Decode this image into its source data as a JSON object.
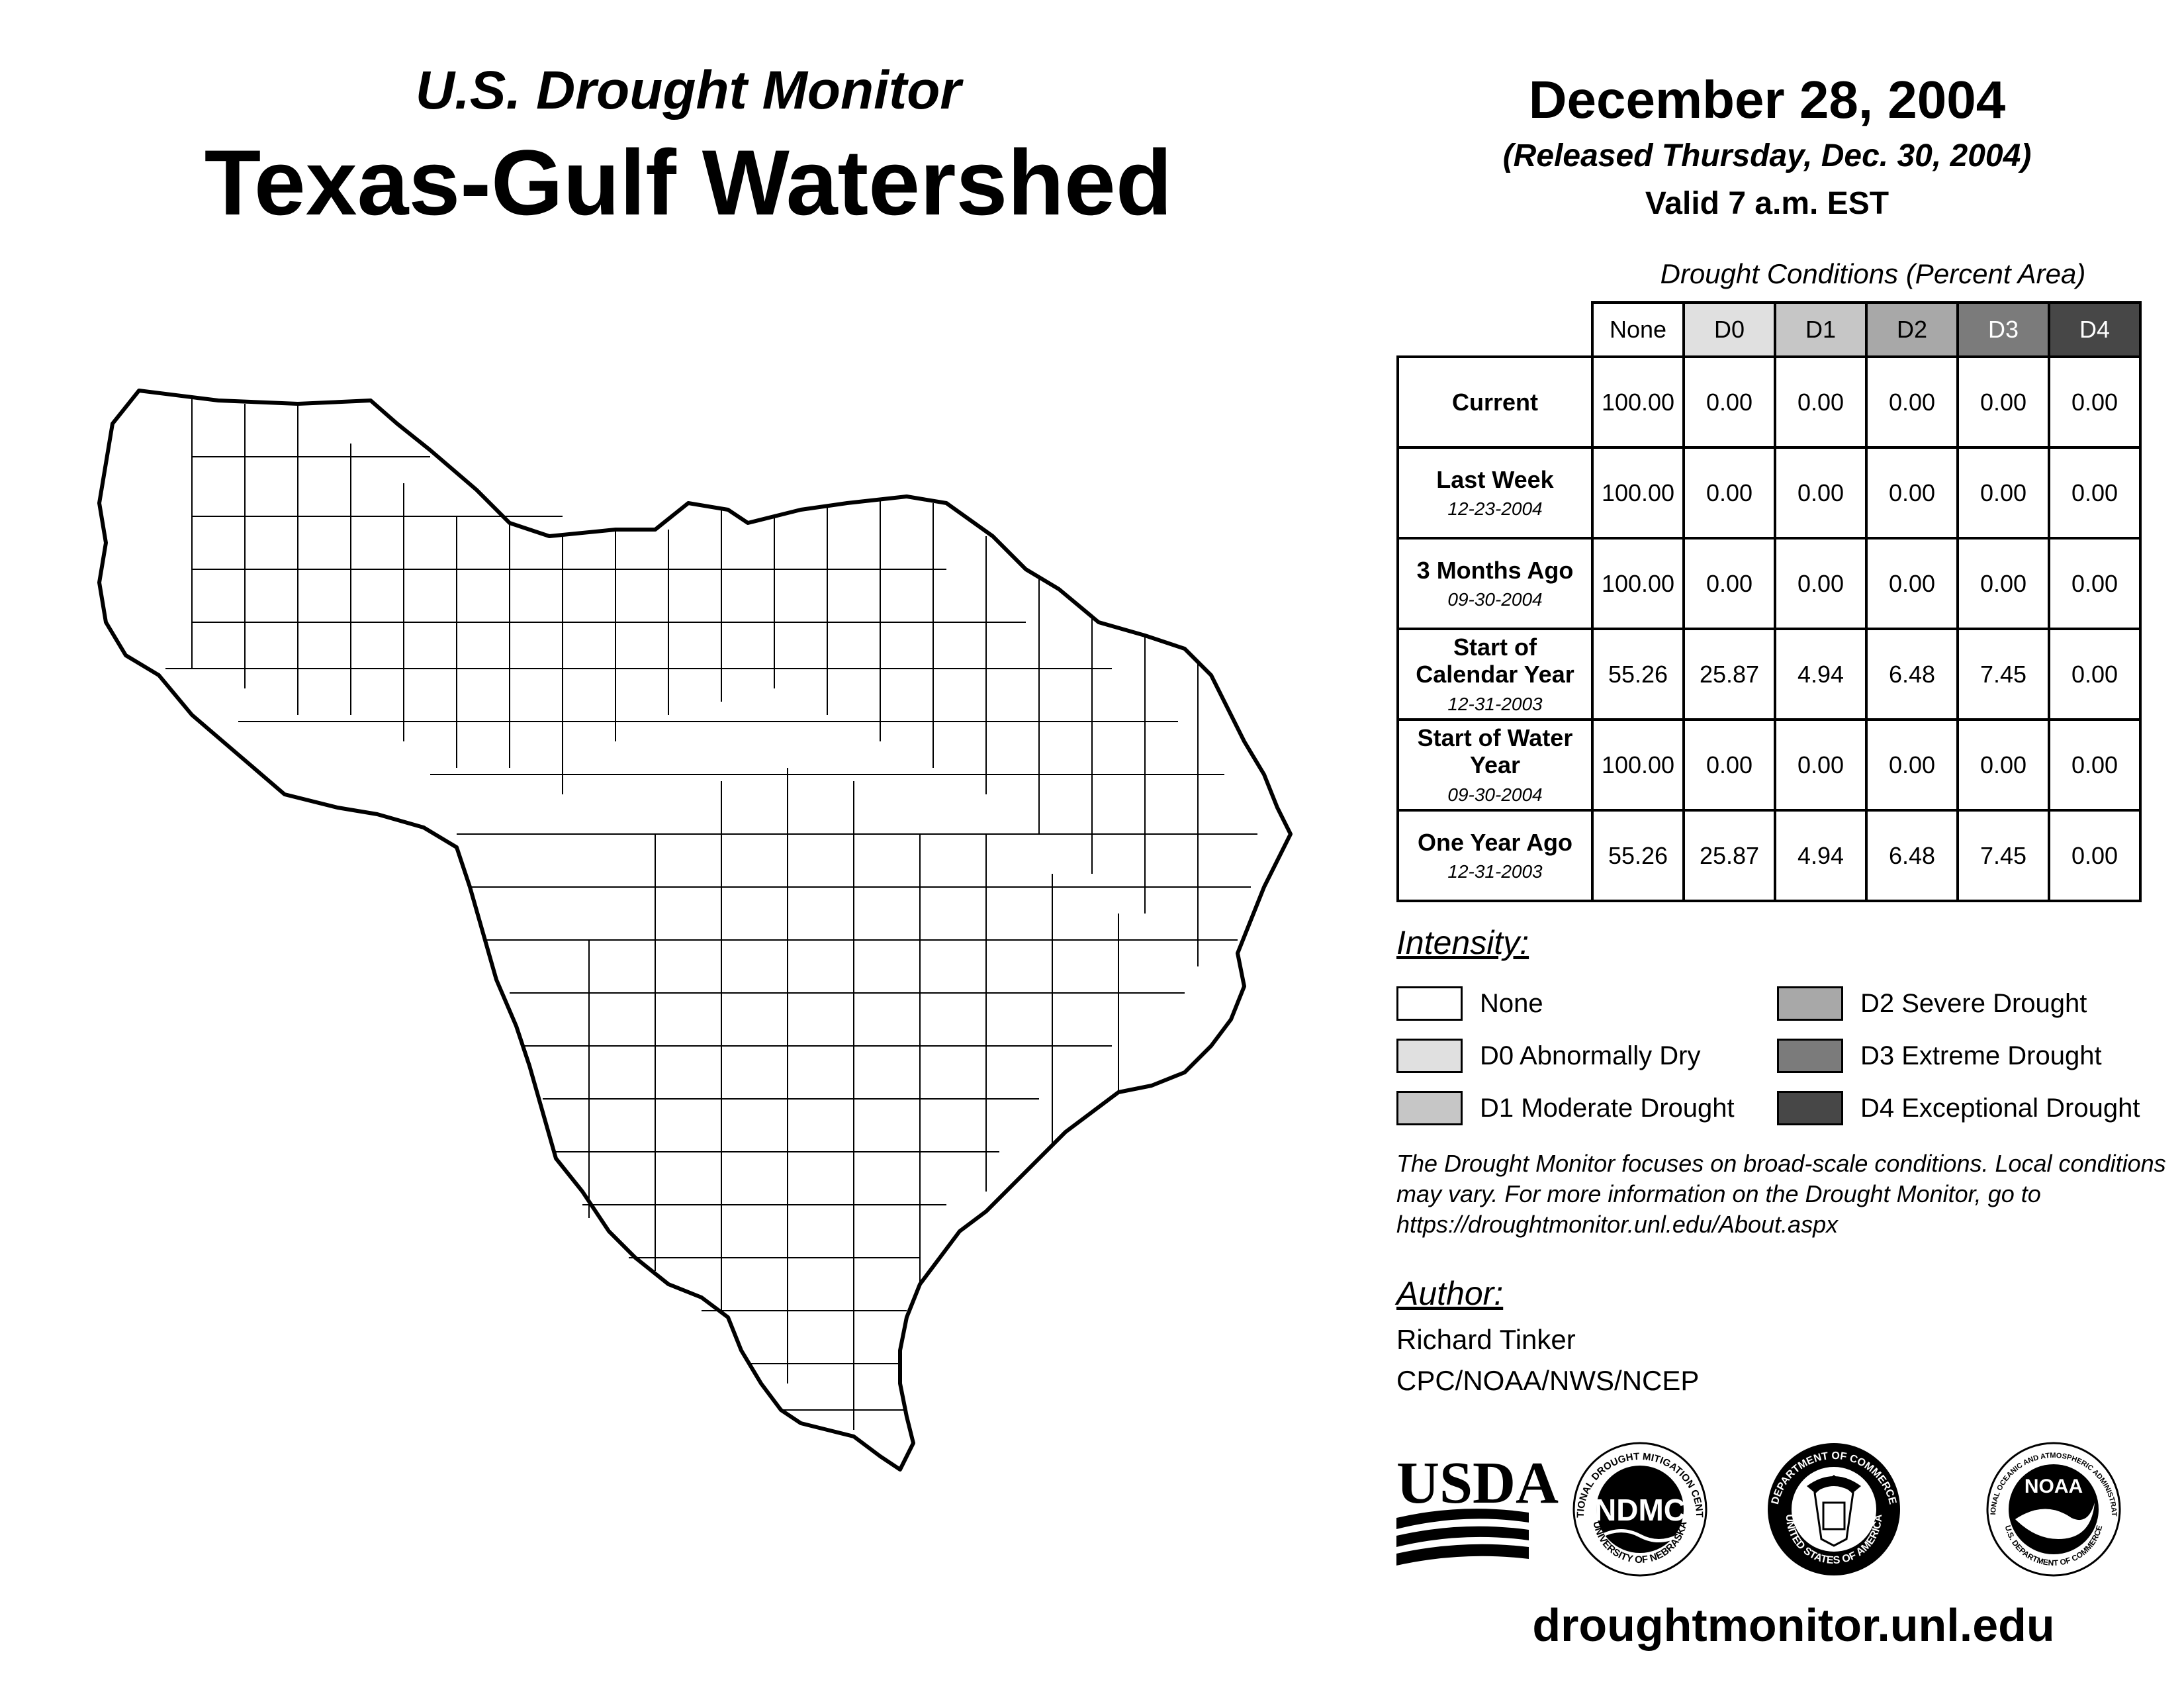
{
  "header": {
    "subtitle": "U.S. Drought Monitor",
    "title": "Texas-Gulf Watershed",
    "date": "December 28, 2004",
    "released": "(Released Thursday, Dec. 30, 2004)",
    "valid": "Valid 7 a.m. EST"
  },
  "table": {
    "caption": "Drought Conditions (Percent Area)",
    "columns": [
      "None",
      "D0",
      "D1",
      "D2",
      "D3",
      "D4"
    ],
    "rows": [
      {
        "label": "Current",
        "date": "",
        "values": [
          "100.00",
          "0.00",
          "0.00",
          "0.00",
          "0.00",
          "0.00"
        ]
      },
      {
        "label": "Last Week",
        "date": "12-23-2004",
        "values": [
          "100.00",
          "0.00",
          "0.00",
          "0.00",
          "0.00",
          "0.00"
        ]
      },
      {
        "label": "3 Months Ago",
        "date": "09-30-2004",
        "values": [
          "100.00",
          "0.00",
          "0.00",
          "0.00",
          "0.00",
          "0.00"
        ]
      },
      {
        "label": "Start of Calendar Year",
        "date": "12-31-2003",
        "values": [
          "55.26",
          "25.87",
          "4.94",
          "6.48",
          "7.45",
          "0.00"
        ]
      },
      {
        "label": "Start of Water Year",
        "date": "09-30-2004",
        "values": [
          "100.00",
          "0.00",
          "0.00",
          "0.00",
          "0.00",
          "0.00"
        ]
      },
      {
        "label": "One Year Ago",
        "date": "12-31-2003",
        "values": [
          "55.26",
          "25.87",
          "4.94",
          "6.48",
          "7.45",
          "0.00"
        ]
      }
    ]
  },
  "legend": {
    "heading": "Intensity:",
    "items": [
      {
        "label": "None",
        "color": "#ffffff"
      },
      {
        "label": "D0 Abnormally Dry",
        "color": "#e0e0e0"
      },
      {
        "label": "D1 Moderate Drought",
        "color": "#c6c6c6"
      },
      {
        "label": "D2 Severe Drought",
        "color": "#a8a8a8"
      },
      {
        "label": "D3 Extreme Drought",
        "color": "#7b7b7b"
      },
      {
        "label": "D4 Exceptional Drought",
        "color": "#474747"
      }
    ]
  },
  "note": "The Drought Monitor focuses on broad-scale conditions. Local conditions may vary. For more information on the Drought Monitor, go to https://droughtmonitor.unl.edu/About.aspx",
  "author": {
    "heading": "Author:",
    "name": "Richard Tinker",
    "org": "CPC/NOAA/NWS/NCEP"
  },
  "logos": {
    "usda": "USDA",
    "ndmc": "NDMC",
    "ndmc_ring_top": "NATIONAL DROUGHT MITIGATION CENTER",
    "ndmc_ring_bottom": "UNIVERSITY OF NEBRASKA",
    "doc_ring_top": "DEPARTMENT OF COMMERCE",
    "doc_ring_bottom": "UNITED STATES OF AMERICA",
    "noaa": "NOAA",
    "noaa_ring_top": "NATIONAL OCEANIC AND ATMOSPHERIC ADMINISTRATION",
    "noaa_ring_bottom": "U.S. DEPARTMENT OF COMMERCE"
  },
  "website": "droughtmonitor.unl.edu"
}
